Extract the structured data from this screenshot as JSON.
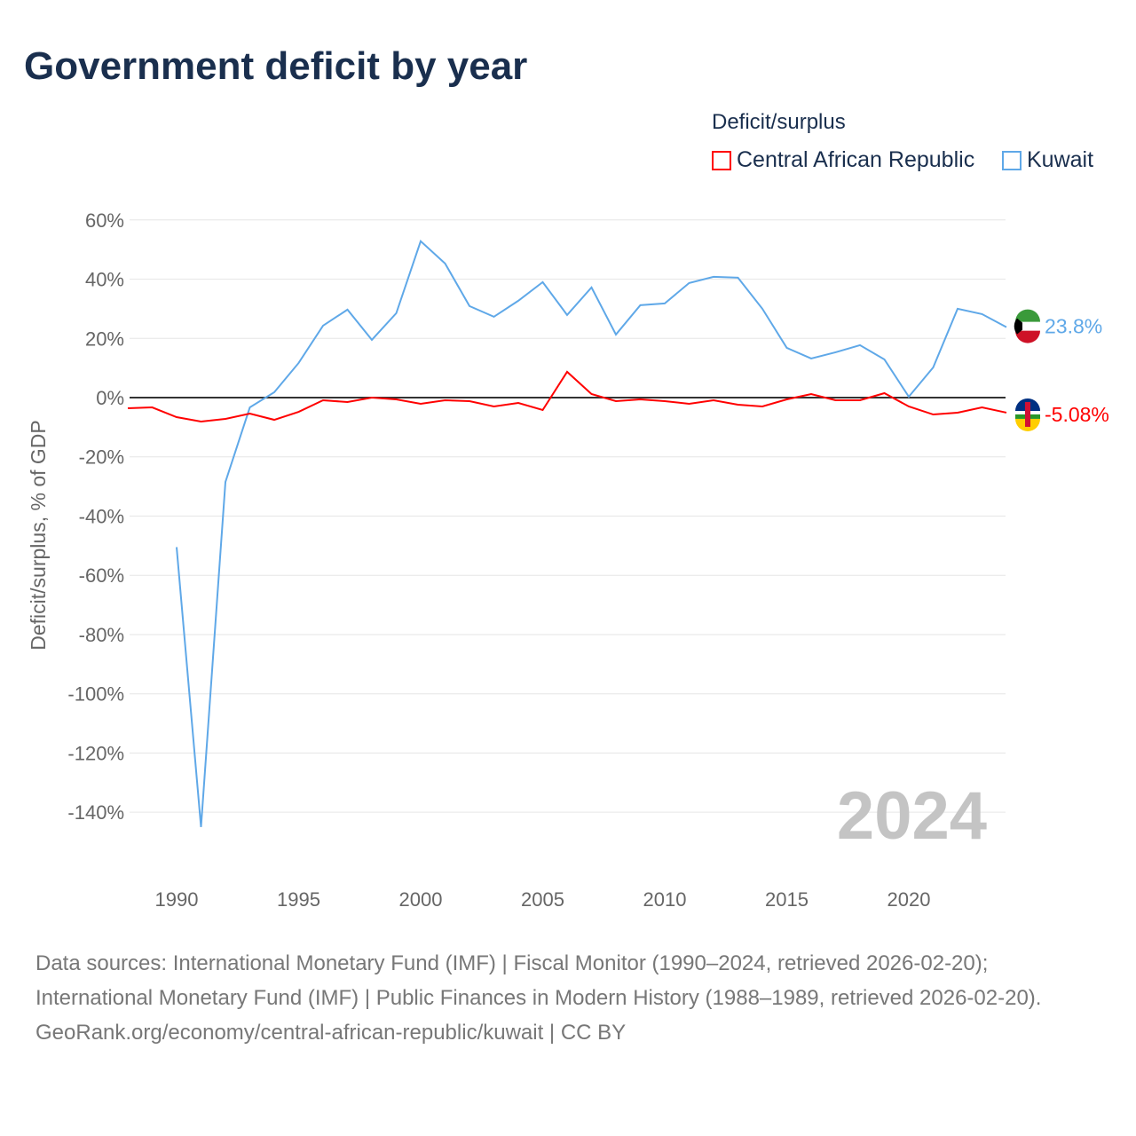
{
  "title": "Government deficit by year",
  "footer": {
    "sources": "Data sources: International Monetary Fund (IMF) | Fiscal Monitor (1990–2024, retrieved 2026-02-20); International Monetary Fund (IMF) | Public Finances in Modern History (1988–1989, retrieved 2026-02-20).",
    "credit": "GeoRank.org/economy/central-african-republic/kuwait | CC BY"
  },
  "chart_data": {
    "type": "line",
    "title": "Government deficit by year",
    "ylabel": "Deficit/surplus, % of GDP",
    "xlabel": "",
    "legend_title": "Deficit/surplus",
    "legend_placement": "top-right",
    "year_watermark": "2024",
    "ylim": [
      -160,
      65
    ],
    "xlim": [
      1988,
      2024
    ],
    "yticks": [
      60,
      40,
      20,
      0,
      -20,
      -40,
      -60,
      -80,
      -100,
      -120,
      -140
    ],
    "ytick_labels": [
      "60%",
      "40%",
      "20%",
      "0%",
      "-20%",
      "-40%",
      "-60%",
      "-80%",
      "-100%",
      "-120%",
      "-140%"
    ],
    "xticks": [
      1990,
      1995,
      2000,
      2005,
      2010,
      2015,
      2020
    ],
    "xtick_labels": [
      "1990",
      "1995",
      "2000",
      "2005",
      "2010",
      "2015",
      "2020"
    ],
    "grid": true,
    "series": [
      {
        "name": "Central African Republic",
        "color": "#ff0000",
        "end_label": "-5.08%",
        "x": [
          1988,
          1989,
          1990,
          1991,
          1992,
          1993,
          1994,
          1995,
          1996,
          1997,
          1998,
          1999,
          2000,
          2001,
          2002,
          2003,
          2004,
          2005,
          2006,
          2007,
          2008,
          2009,
          2010,
          2011,
          2012,
          2013,
          2014,
          2015,
          2016,
          2017,
          2018,
          2019,
          2020,
          2021,
          2022,
          2023,
          2024
        ],
        "values": [
          -3.6,
          -3.3,
          -6.6,
          -8.1,
          -7.2,
          -5.4,
          -7.5,
          -4.8,
          -0.9,
          -1.5,
          0,
          -0.6,
          -2.1,
          -0.9,
          -1.2,
          -3.0,
          -1.8,
          -4.2,
          8.7,
          1.2,
          -1.2,
          -0.6,
          -1.2,
          -2.1,
          -0.9,
          -2.4,
          -3.0,
          -0.6,
          1.2,
          -0.9,
          -0.9,
          1.5,
          -3.0,
          -5.7,
          -5.1,
          -3.3,
          -5.08
        ]
      },
      {
        "name": "Kuwait",
        "color": "#5fa8e8",
        "end_label": "23.8%",
        "x": [
          1990,
          1991,
          1992,
          1993,
          1994,
          1995,
          1996,
          1997,
          1998,
          1999,
          2000,
          2001,
          2002,
          2003,
          2004,
          2005,
          2006,
          2007,
          2008,
          2009,
          2010,
          2011,
          2012,
          2013,
          2014,
          2015,
          2016,
          2017,
          2018,
          2019,
          2020,
          2021,
          2022,
          2023,
          2024
        ],
        "values": [
          -50.5,
          -145,
          -28.5,
          -3.3,
          1.8,
          11.7,
          24.3,
          29.7,
          19.5,
          28.5,
          52.8,
          45.3,
          30.9,
          27.3,
          32.7,
          39.0,
          27.9,
          37.2,
          21.3,
          31.2,
          31.8,
          38.7,
          40.8,
          40.5,
          30.0,
          16.8,
          13.2,
          15.3,
          17.7,
          12.9,
          0.3,
          10.2,
          30.0,
          28.2,
          23.8
        ]
      }
    ]
  }
}
